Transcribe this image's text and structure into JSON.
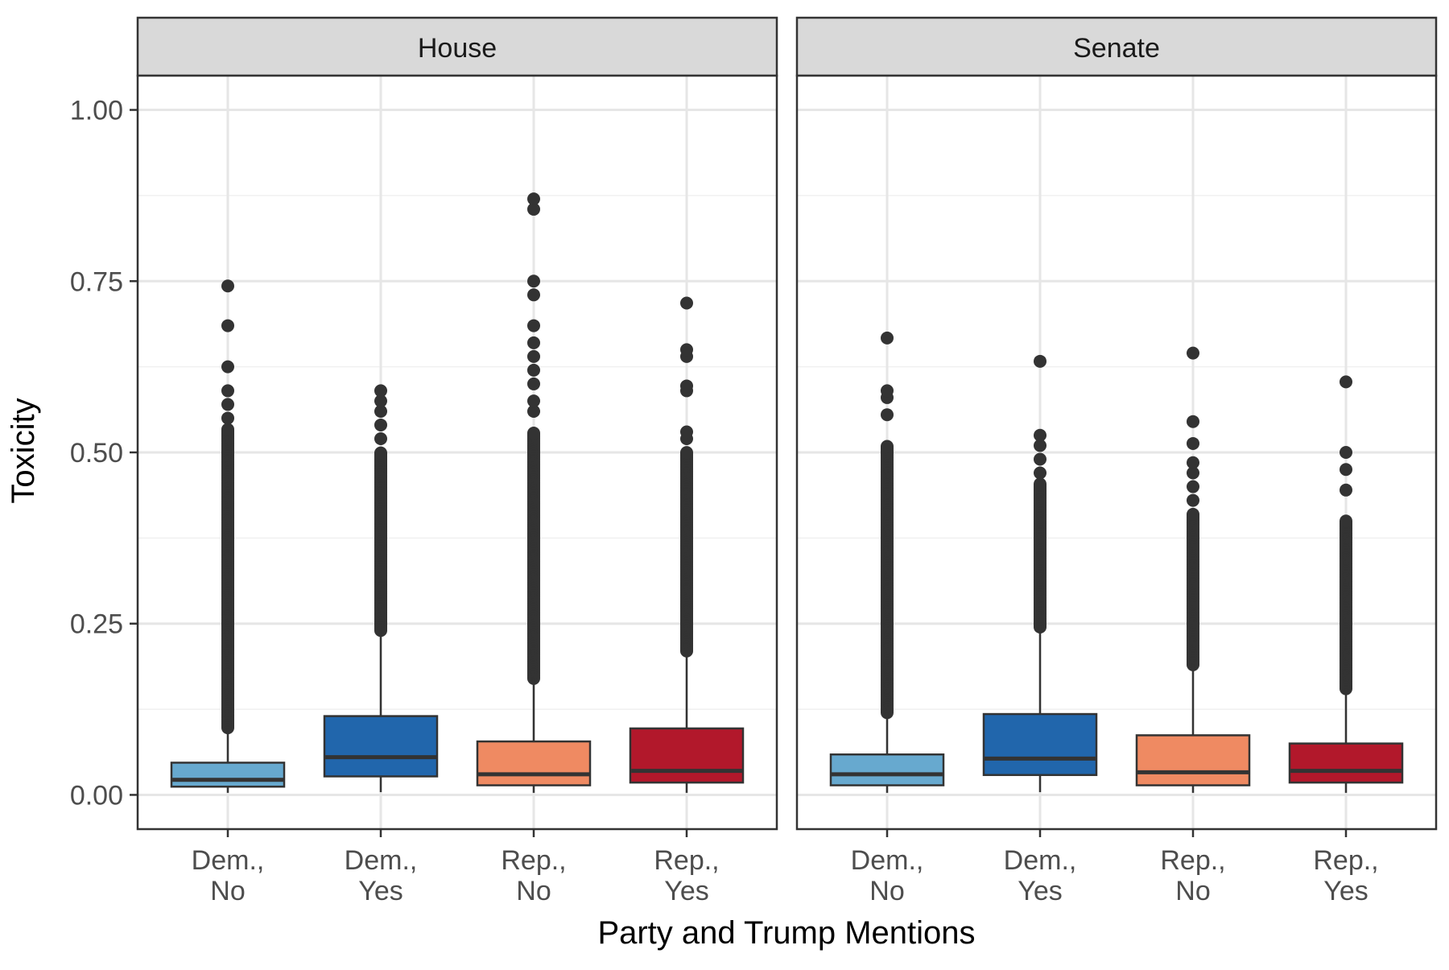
{
  "chart_data": {
    "type": "boxplot",
    "title": "",
    "xlabel": "Party and Trump Mentions",
    "ylabel": "Toxicity",
    "ylim": [
      -0.05,
      1.05
    ],
    "y_ticks": [
      0.0,
      0.25,
      0.5,
      0.75,
      1.0
    ],
    "y_tick_labels": [
      "0.00",
      "0.25",
      "0.50",
      "0.75",
      "1.00"
    ],
    "grid": true,
    "legend": "none",
    "categories": [
      {
        "label_line1": "Dem.,",
        "label_line2": "No",
        "color": "#67a9cf"
      },
      {
        "label_line1": "Dem.,",
        "label_line2": "Yes",
        "color": "#2166ac"
      },
      {
        "label_line1": "Rep.,",
        "label_line2": "No",
        "color": "#ef8a62"
      },
      {
        "label_line1": "Rep.,",
        "label_line2": "Yes",
        "color": "#b2182b"
      }
    ],
    "panels": [
      {
        "strip_label": "House",
        "boxes": [
          {
            "q1": 0.012,
            "median": 0.022,
            "q3": 0.047,
            "whisker_low": 0.003,
            "whisker_high": 0.098,
            "outlier_range": [
              0.098,
              0.535
            ],
            "outliers": [
              0.55,
              0.57,
              0.59,
              0.625,
              0.685,
              0.743
            ]
          },
          {
            "q1": 0.027,
            "median": 0.055,
            "q3": 0.115,
            "whisker_low": 0.004,
            "whisker_high": 0.24,
            "outlier_range": [
              0.24,
              0.5
            ],
            "outliers": [
              0.52,
              0.54,
              0.56,
              0.575,
              0.59
            ]
          },
          {
            "q1": 0.014,
            "median": 0.03,
            "q3": 0.078,
            "whisker_low": 0.003,
            "whisker_high": 0.17,
            "outlier_range": [
              0.17,
              0.53
            ],
            "outliers": [
              0.56,
              0.575,
              0.6,
              0.62,
              0.64,
              0.66,
              0.685,
              0.73,
              0.75,
              0.855,
              0.87
            ]
          },
          {
            "q1": 0.018,
            "median": 0.035,
            "q3": 0.097,
            "whisker_low": 0.003,
            "whisker_high": 0.21,
            "outlier_range": [
              0.21,
              0.5
            ],
            "outliers": [
              0.52,
              0.53,
              0.59,
              0.597,
              0.64,
              0.65,
              0.718
            ]
          }
        ]
      },
      {
        "strip_label": "Senate",
        "boxes": [
          {
            "q1": 0.014,
            "median": 0.03,
            "q3": 0.059,
            "whisker_low": 0.003,
            "whisker_high": 0.12,
            "outlier_range": [
              0.12,
              0.51
            ],
            "outliers": [
              0.555,
              0.58,
              0.59,
              0.667
            ]
          },
          {
            "q1": 0.029,
            "median": 0.053,
            "q3": 0.118,
            "whisker_low": 0.004,
            "whisker_high": 0.245,
            "outlier_range": [
              0.245,
              0.455
            ],
            "outliers": [
              0.47,
              0.49,
              0.51,
              0.525,
              0.633
            ]
          },
          {
            "q1": 0.014,
            "median": 0.033,
            "q3": 0.087,
            "whisker_low": 0.003,
            "whisker_high": 0.19,
            "outlier_range": [
              0.19,
              0.41
            ],
            "outliers": [
              0.43,
              0.45,
              0.47,
              0.485,
              0.513,
              0.545,
              0.645
            ]
          },
          {
            "q1": 0.018,
            "median": 0.035,
            "q3": 0.075,
            "whisker_low": 0.003,
            "whisker_high": 0.155,
            "outlier_range": [
              0.155,
              0.4
            ],
            "outliers": [
              0.445,
              0.475,
              0.5,
              0.603
            ]
          }
        ]
      }
    ]
  }
}
